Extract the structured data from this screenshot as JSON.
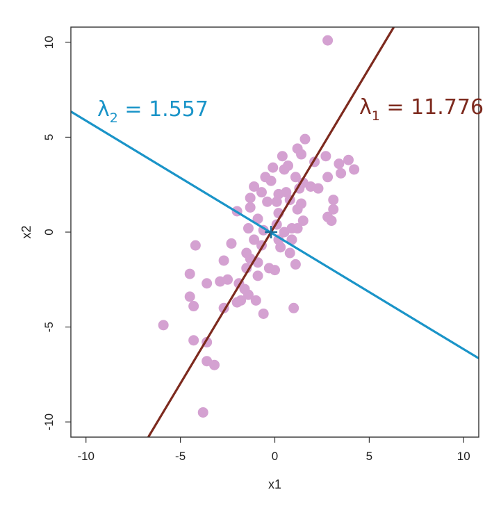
{
  "chart_data": {
    "type": "scatter",
    "xlabel": "x1",
    "ylabel": "x2",
    "xlim": [
      -10.8,
      10.8
    ],
    "ylim": [
      -10.8,
      10.8
    ],
    "x_ticks": [
      -10,
      -5,
      0,
      5,
      10
    ],
    "y_ticks": [
      -10,
      -5,
      0,
      5,
      10
    ],
    "x_tick_labels": [
      "-10",
      "-5",
      "0",
      "5",
      "10"
    ],
    "y_tick_labels": [
      "-10",
      "-5",
      "0",
      "5",
      "10"
    ],
    "grid": false,
    "point_color": "#d4a1d1",
    "points": [
      [
        2.8,
        10.1
      ],
      [
        1.6,
        4.9
      ],
      [
        1.2,
        4.4
      ],
      [
        2.7,
        4.0
      ],
      [
        0.4,
        4.0
      ],
      [
        1.4,
        4.1
      ],
      [
        3.4,
        3.6
      ],
      [
        3.9,
        3.8
      ],
      [
        4.2,
        3.3
      ],
      [
        3.5,
        3.1
      ],
      [
        -0.1,
        3.4
      ],
      [
        0.5,
        3.3
      ],
      [
        0.7,
        3.5
      ],
      [
        2.1,
        3.7
      ],
      [
        1.1,
        2.9
      ],
      [
        -0.5,
        2.9
      ],
      [
        -0.2,
        2.7
      ],
      [
        1.5,
        2.6
      ],
      [
        2.3,
        2.3
      ],
      [
        2.8,
        2.9
      ],
      [
        -1.1,
        2.4
      ],
      [
        0.2,
        2.0
      ],
      [
        0.6,
        2.1
      ],
      [
        1.3,
        2.3
      ],
      [
        -0.7,
        2.1
      ],
      [
        -1.3,
        1.8
      ],
      [
        -0.4,
        1.6
      ],
      [
        0.1,
        1.6
      ],
      [
        0.8,
        1.7
      ],
      [
        1.4,
        1.5
      ],
      [
        1.9,
        2.4
      ],
      [
        3.1,
        1.7
      ],
      [
        -2.0,
        1.1
      ],
      [
        -1.3,
        1.3
      ],
      [
        1.2,
        1.2
      ],
      [
        2.8,
        0.8
      ],
      [
        3.0,
        0.6
      ],
      [
        3.1,
        1.2
      ],
      [
        -0.9,
        0.7
      ],
      [
        0.2,
        1.0
      ],
      [
        1.5,
        0.6
      ],
      [
        -1.4,
        0.2
      ],
      [
        -0.6,
        0.1
      ],
      [
        0.1,
        0.4
      ],
      [
        0.5,
        0.0
      ],
      [
        0.9,
        0.2
      ],
      [
        1.2,
        0.2
      ],
      [
        -1.1,
        -0.4
      ],
      [
        0.2,
        -0.4
      ],
      [
        0.9,
        -0.4
      ],
      [
        -2.3,
        -0.6
      ],
      [
        -0.7,
        -0.7
      ],
      [
        0.3,
        -0.8
      ],
      [
        -4.2,
        -0.7
      ],
      [
        -1.5,
        -1.1
      ],
      [
        0.8,
        -1.1
      ],
      [
        -2.7,
        -1.5
      ],
      [
        -1.3,
        -1.4
      ],
      [
        -0.9,
        -1.6
      ],
      [
        1.1,
        -1.7
      ],
      [
        -1.5,
        -1.9
      ],
      [
        -0.3,
        -1.9
      ],
      [
        0.0,
        -2.0
      ],
      [
        -4.5,
        -2.2
      ],
      [
        -0.9,
        -2.3
      ],
      [
        -2.9,
        -2.6
      ],
      [
        -2.5,
        -2.5
      ],
      [
        -1.9,
        -2.7
      ],
      [
        -1.6,
        -3.0
      ],
      [
        -3.6,
        -2.7
      ],
      [
        -1.4,
        -3.3
      ],
      [
        -1.8,
        -3.6
      ],
      [
        -2.0,
        -3.7
      ],
      [
        -1.0,
        -3.6
      ],
      [
        -4.5,
        -3.4
      ],
      [
        -4.3,
        -3.9
      ],
      [
        -2.7,
        -4.0
      ],
      [
        1.0,
        -4.0
      ],
      [
        -0.6,
        -4.3
      ],
      [
        -5.9,
        -4.9
      ],
      [
        -4.3,
        -5.7
      ],
      [
        -3.6,
        -5.8
      ],
      [
        -3.6,
        -6.8
      ],
      [
        -3.2,
        -7.0
      ],
      [
        -3.8,
        -9.5
      ]
    ],
    "lines": [
      {
        "name": "pc1",
        "color": "#7d2a1e",
        "p1": [
          -6.7,
          -10.8
        ],
        "p2": [
          6.3,
          10.8
        ]
      },
      {
        "name": "pc2",
        "color": "#1a94c8",
        "p1": [
          -10.8,
          6.35
        ],
        "p2": [
          10.8,
          -6.65
        ]
      }
    ],
    "center_marker": {
      "x": -0.2,
      "y": 0.0,
      "color": "#1a6f9a"
    }
  },
  "annotations": {
    "lambda2": {
      "symbol": "λ",
      "subscript": "2",
      "text": " = 1.557",
      "color": "#1a94c8"
    },
    "lambda1": {
      "symbol": "λ",
      "subscript": "1",
      "text": " = 11.776",
      "color": "#7d2a1e"
    }
  }
}
